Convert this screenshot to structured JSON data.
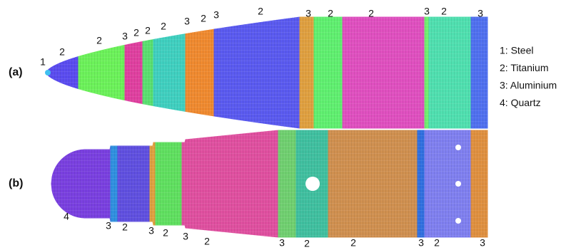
{
  "panels": [
    {
      "label": "(a)",
      "segment_labels": [
        "1",
        "2",
        "2",
        "3",
        "2",
        "2",
        "2",
        "3",
        "2",
        "3",
        "2",
        "3",
        "2",
        "2",
        "3",
        "2",
        "3"
      ]
    },
    {
      "label": "(b)",
      "segment_labels": [
        "4",
        "3",
        "2",
        "3",
        "2",
        "3",
        "2",
        "3",
        "2",
        "2",
        "3",
        "2",
        "3"
      ]
    }
  ],
  "legend": [
    "1: Steel",
    "2: Titanium",
    "3: Aluminium",
    "4: Quartz"
  ]
}
